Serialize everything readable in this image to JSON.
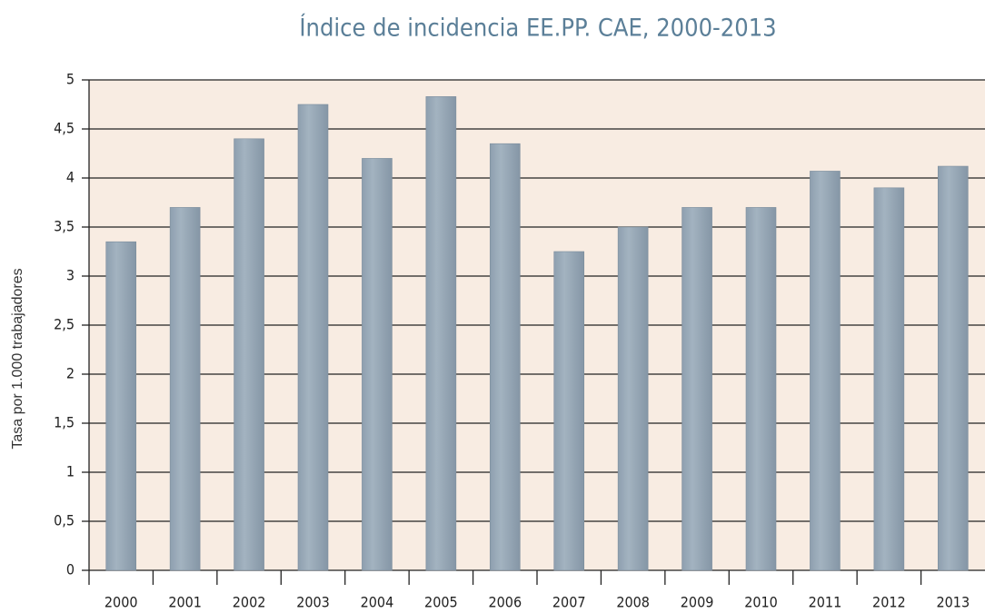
{
  "chart_data": {
    "type": "bar",
    "title": "Índice de incidencia EE.PP. CAE, 2000-2013",
    "y_label": "Tasa por 1.000 trabajadores",
    "categories": [
      "2000",
      "2001",
      "2002",
      "2003",
      "2004",
      "2005",
      "2006",
      "2007",
      "2008",
      "2009",
      "2010",
      "2011",
      "2012",
      "2013"
    ],
    "values": [
      3.35,
      3.7,
      4.4,
      4.75,
      4.2,
      4.83,
      4.35,
      3.25,
      3.5,
      3.7,
      3.7,
      4.07,
      3.9,
      4.12
    ],
    "color": "#9aabb9",
    "ylim": [
      0,
      5
    ],
    "yticks": [
      0,
      {
        "value": 0.5,
        "label": "0,5"
      },
      1,
      {
        "value": 1.5,
        "label": "1,5"
      },
      2,
      {
        "value": 2.5,
        "label": "2,5"
      },
      3,
      {
        "value": 3.5,
        "label": "3,5"
      },
      4,
      {
        "value": 4.5,
        "label": "4,5"
      },
      5
    ],
    "grid": true
  }
}
